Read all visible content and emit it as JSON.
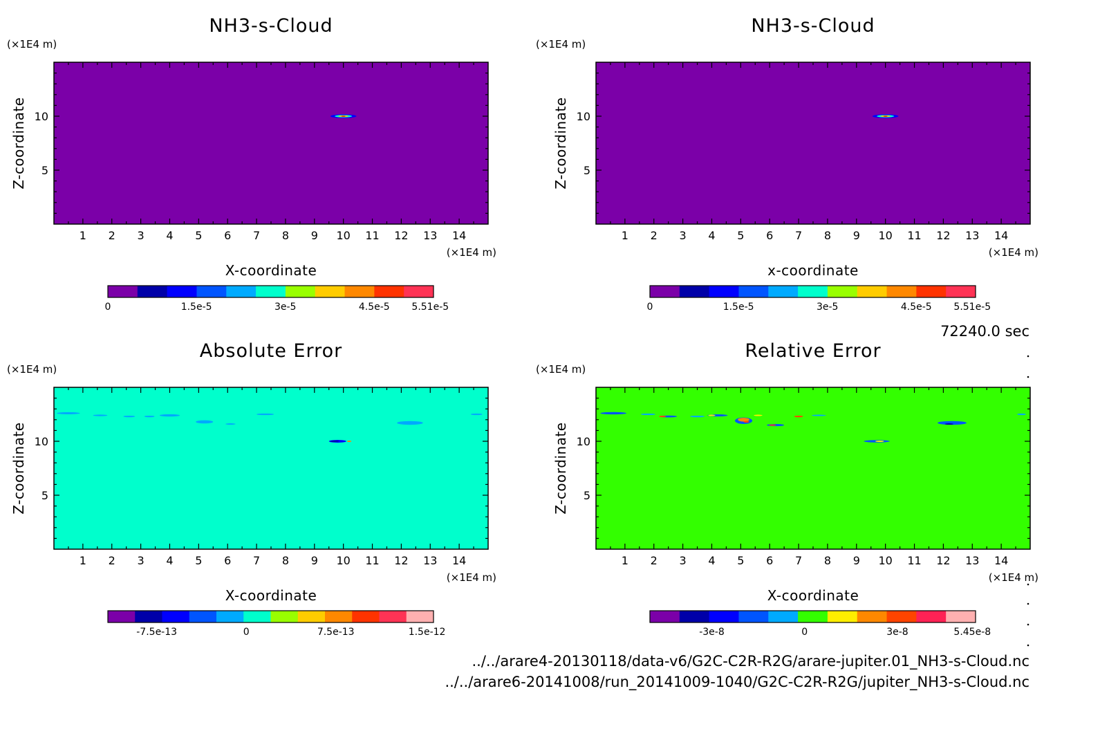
{
  "time_label": "72240.0 sec",
  "file_paths": [
    "../../arare4-20130118/data-v6/G2C-C2R-R2G/arare-jupiter.01_NH3-s-Cloud.nc",
    "../../arare6-20141008/run_20141009-1040/G2C-C2R-R2G/jupiter_NH3-s-Cloud.nc"
  ],
  "colors": {
    "background_top": "#7b00a8",
    "background_abs": "#00ffcc",
    "background_rel": "#33ff00"
  },
  "chart_data": [
    {
      "type": "heatmap",
      "title": "NH3-s-Cloud",
      "xlabel": "X-coordinate",
      "ylabel": "Z-coordinate",
      "x_unit": "(×1E4 m)",
      "y_unit": "(×1E4 m)",
      "xlim": [
        0,
        15
      ],
      "ylim": [
        0,
        15
      ],
      "x_ticks": [
        "1",
        "2",
        "3",
        "4",
        "5",
        "6",
        "7",
        "8",
        "9",
        "10",
        "11",
        "12",
        "13",
        "14"
      ],
      "y_ticks": [
        "5",
        "10"
      ],
      "colorbar": {
        "colors": [
          "#7b00a8",
          "#0000a8",
          "#0000ff",
          "#0055ff",
          "#00aaff",
          "#00ffcc",
          "#99ff00",
          "#ffcc00",
          "#ff8800",
          "#ff3300",
          "#ff3355"
        ],
        "labels": [
          "0",
          "1.5e-5",
          "3e-5",
          "4.5e-5",
          "5.51e-5"
        ],
        "label_fracs": [
          0,
          0.272,
          0.545,
          0.818,
          0.99
        ]
      },
      "features": [
        {
          "x": 10.0,
          "z": 10.0,
          "w": 0.9,
          "h": 0.35,
          "color": "#0000ff"
        },
        {
          "x": 10.0,
          "z": 10.0,
          "w": 0.6,
          "h": 0.22,
          "color": "#00ffcc"
        },
        {
          "x": 10.0,
          "z": 10.0,
          "w": 0.35,
          "h": 0.14,
          "color": "#ffcc00"
        },
        {
          "x": 10.0,
          "z": 10.0,
          "w": 0.15,
          "h": 0.07,
          "color": "#ff3300"
        }
      ]
    },
    {
      "type": "heatmap",
      "title": "NH3-s-Cloud",
      "xlabel": "x-coordinate",
      "ylabel": "Z-coordinate",
      "x_unit": "(×1E4 m)",
      "y_unit": "(×1E4 m)",
      "xlim": [
        0,
        15
      ],
      "ylim": [
        0,
        15
      ],
      "x_ticks": [
        "1",
        "2",
        "3",
        "4",
        "5",
        "6",
        "7",
        "8",
        "9",
        "10",
        "11",
        "12",
        "13",
        "14"
      ],
      "y_ticks": [
        "5",
        "10"
      ],
      "colorbar": {
        "colors": [
          "#7b00a8",
          "#0000a8",
          "#0000ff",
          "#0055ff",
          "#00aaff",
          "#00ffcc",
          "#99ff00",
          "#ffcc00",
          "#ff8800",
          "#ff3300",
          "#ff3355"
        ],
        "labels": [
          "0",
          "1.5e-5",
          "3e-5",
          "4.5e-5",
          "5.51e-5"
        ],
        "label_fracs": [
          0,
          0.272,
          0.545,
          0.818,
          0.99
        ]
      },
      "features": [
        {
          "x": 10.0,
          "z": 10.0,
          "w": 0.9,
          "h": 0.35,
          "color": "#0000ff"
        },
        {
          "x": 10.0,
          "z": 10.0,
          "w": 0.6,
          "h": 0.22,
          "color": "#00ffcc"
        },
        {
          "x": 10.0,
          "z": 10.0,
          "w": 0.35,
          "h": 0.14,
          "color": "#ffcc00"
        },
        {
          "x": 10.0,
          "z": 10.0,
          "w": 0.15,
          "h": 0.07,
          "color": "#ff3300"
        }
      ]
    },
    {
      "type": "heatmap",
      "title": "Absolute Error",
      "xlabel": "X-coordinate",
      "ylabel": "Z-coordinate",
      "x_unit": "(×1E4 m)",
      "y_unit": "(×1E4 m)",
      "xlim": [
        0,
        15
      ],
      "ylim": [
        0,
        15
      ],
      "x_ticks": [
        "1",
        "2",
        "3",
        "4",
        "5",
        "6",
        "7",
        "8",
        "9",
        "10",
        "11",
        "12",
        "13",
        "14"
      ],
      "y_ticks": [
        "5",
        "10"
      ],
      "colorbar": {
        "colors": [
          "#7b00a8",
          "#0000a8",
          "#0000ff",
          "#0055ff",
          "#00aaff",
          "#00ffcc",
          "#99ff00",
          "#ffcc00",
          "#ff8800",
          "#ff3300",
          "#ff3355",
          "#ffb0b0"
        ],
        "labels": [
          "-7.5e-13",
          "0",
          "7.5e-13",
          "1.5e-12"
        ],
        "label_fracs": [
          0.15,
          0.425,
          0.7,
          0.98
        ]
      },
      "features": [
        {
          "x": 0.5,
          "z": 12.6,
          "w": 0.8,
          "h": 0.2,
          "color": "#00aaff"
        },
        {
          "x": 1.6,
          "z": 12.4,
          "w": 0.5,
          "h": 0.15,
          "color": "#00aaff"
        },
        {
          "x": 2.6,
          "z": 12.3,
          "w": 0.4,
          "h": 0.15,
          "color": "#00aaff"
        },
        {
          "x": 3.3,
          "z": 12.3,
          "w": 0.35,
          "h": 0.15,
          "color": "#00aaff"
        },
        {
          "x": 4.0,
          "z": 12.4,
          "w": 0.7,
          "h": 0.22,
          "color": "#00aaff"
        },
        {
          "x": 5.2,
          "z": 11.8,
          "w": 0.6,
          "h": 0.3,
          "color": "#00aaff"
        },
        {
          "x": 6.1,
          "z": 11.6,
          "w": 0.35,
          "h": 0.12,
          "color": "#00aaff"
        },
        {
          "x": 7.3,
          "z": 12.5,
          "w": 0.6,
          "h": 0.15,
          "color": "#00aaff"
        },
        {
          "x": 12.3,
          "z": 11.7,
          "w": 0.9,
          "h": 0.35,
          "color": "#00aaff"
        },
        {
          "x": 14.6,
          "z": 12.5,
          "w": 0.4,
          "h": 0.15,
          "color": "#00aaff"
        },
        {
          "x": 9.8,
          "z": 10.0,
          "w": 0.6,
          "h": 0.25,
          "color": "#0000ff"
        },
        {
          "x": 9.7,
          "z": 10.0,
          "w": 0.3,
          "h": 0.12,
          "color": "#0000a8"
        },
        {
          "x": 10.2,
          "z": 10.0,
          "w": 0.15,
          "h": 0.08,
          "color": "#ff8800"
        }
      ]
    },
    {
      "type": "heatmap",
      "title": "Relative Error",
      "xlabel": "X-coordinate",
      "ylabel": "Z-coordinate",
      "x_unit": "(×1E4 m)",
      "y_unit": "(×1E4 m)",
      "xlim": [
        0,
        15
      ],
      "ylim": [
        0,
        15
      ],
      "x_ticks": [
        "1",
        "2",
        "3",
        "4",
        "5",
        "6",
        "7",
        "8",
        "9",
        "10",
        "11",
        "12",
        "13",
        "14"
      ],
      "y_ticks": [
        "5",
        "10"
      ],
      "colorbar": {
        "colors": [
          "#7b00a8",
          "#0000a8",
          "#0000ff",
          "#0055ff",
          "#00aaff",
          "#33ff00",
          "#ffee00",
          "#ff8800",
          "#ff4400",
          "#ff2255",
          "#ffb0b0"
        ],
        "labels": [
          "-3e-8",
          "0",
          "3e-8",
          "5.45e-8"
        ],
        "label_fracs": [
          0.19,
          0.475,
          0.76,
          0.99
        ]
      },
      "features": [
        {
          "x": 0.6,
          "z": 12.6,
          "w": 0.9,
          "h": 0.22,
          "color": "#0055ff"
        },
        {
          "x": 1.8,
          "z": 12.5,
          "w": 0.5,
          "h": 0.15,
          "color": "#00aaff"
        },
        {
          "x": 2.5,
          "z": 12.3,
          "w": 0.6,
          "h": 0.18,
          "color": "#0055ff"
        },
        {
          "x": 2.3,
          "z": 12.3,
          "w": 0.25,
          "h": 0.1,
          "color": "#ff4400"
        },
        {
          "x": 3.5,
          "z": 12.3,
          "w": 0.5,
          "h": 0.15,
          "color": "#00aaff"
        },
        {
          "x": 4.2,
          "z": 12.4,
          "w": 0.7,
          "h": 0.2,
          "color": "#0055ff"
        },
        {
          "x": 4.0,
          "z": 12.4,
          "w": 0.25,
          "h": 0.1,
          "color": "#ffee00"
        },
        {
          "x": 5.1,
          "z": 11.9,
          "w": 0.6,
          "h": 0.6,
          "color": "#0055ff"
        },
        {
          "x": 5.1,
          "z": 12.0,
          "w": 0.4,
          "h": 0.35,
          "color": "#ff8800"
        },
        {
          "x": 5.2,
          "z": 11.8,
          "w": 0.2,
          "h": 0.15,
          "color": "#ff4400"
        },
        {
          "x": 5.6,
          "z": 12.4,
          "w": 0.3,
          "h": 0.12,
          "color": "#ffee00"
        },
        {
          "x": 6.2,
          "z": 11.5,
          "w": 0.6,
          "h": 0.2,
          "color": "#0055ff"
        },
        {
          "x": 6.1,
          "z": 11.5,
          "w": 0.25,
          "h": 0.1,
          "color": "#ff4400"
        },
        {
          "x": 7.0,
          "z": 12.3,
          "w": 0.3,
          "h": 0.15,
          "color": "#ff4400"
        },
        {
          "x": 7.7,
          "z": 12.4,
          "w": 0.5,
          "h": 0.12,
          "color": "#00aaff"
        },
        {
          "x": 12.3,
          "z": 11.7,
          "w": 1.0,
          "h": 0.35,
          "color": "#0055ff"
        },
        {
          "x": 12.2,
          "z": 11.6,
          "w": 0.3,
          "h": 0.12,
          "color": "#0000a8"
        },
        {
          "x": 14.7,
          "z": 12.5,
          "w": 0.3,
          "h": 0.15,
          "color": "#00aaff"
        },
        {
          "x": 9.7,
          "z": 10.0,
          "w": 0.9,
          "h": 0.22,
          "color": "#0055ff"
        },
        {
          "x": 9.8,
          "z": 10.0,
          "w": 0.3,
          "h": 0.1,
          "color": "#ffee00"
        }
      ]
    }
  ]
}
